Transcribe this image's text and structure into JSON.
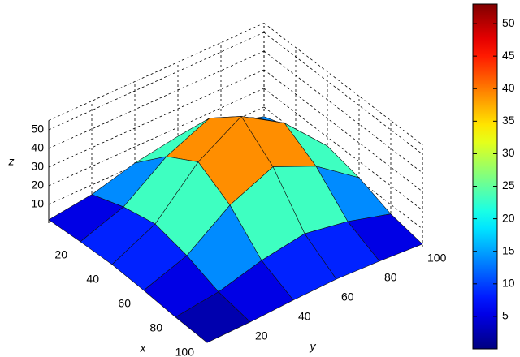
{
  "chart_data": {
    "type": "surface",
    "x": [
      0,
      20,
      40,
      60,
      80,
      100
    ],
    "y": [
      0,
      20,
      40,
      60,
      80,
      100
    ],
    "z": [
      [
        1.8,
        4.9,
        11.3,
        15.2,
        11.3,
        4.9
      ],
      [
        3.1,
        11.3,
        27.9,
        38.0,
        27.9,
        11.3
      ],
      [
        3.9,
        15.2,
        38.0,
        52.0,
        38.0,
        15.2
      ],
      [
        3.1,
        11.3,
        27.9,
        38.0,
        27.9,
        11.3
      ],
      [
        1.8,
        4.9,
        11.3,
        15.2,
        11.3,
        4.9
      ],
      [
        1.2,
        1.8,
        3.1,
        3.9,
        3.1,
        1.8
      ]
    ],
    "xlabel": "x",
    "ylabel": "y",
    "zlabel": "z",
    "xlim": [
      0,
      100
    ],
    "ylim": [
      0,
      100
    ],
    "zlim": [
      0,
      55
    ],
    "xticks": [
      20,
      40,
      60,
      80,
      100
    ],
    "yticks": [
      20,
      40,
      60,
      80,
      100
    ],
    "zticks": [
      10,
      20,
      30,
      40,
      50
    ],
    "colormap": "jet",
    "clim": [
      0,
      53
    ],
    "cticks": [
      5,
      10,
      15,
      20,
      25,
      30,
      35,
      40,
      45,
      50
    ],
    "grid": true
  }
}
